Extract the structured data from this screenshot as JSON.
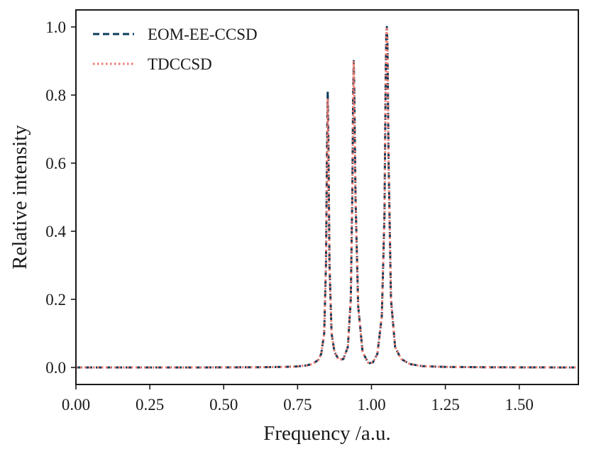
{
  "chart_data": {
    "type": "line",
    "xlabel": "Frequency /a.u.",
    "ylabel": "Relative intensity",
    "xlim": [
      0.0,
      1.7
    ],
    "ylim": [
      -0.05,
      1.05
    ],
    "xticks": [
      0.0,
      0.25,
      0.5,
      0.75,
      1.0,
      1.25,
      1.5
    ],
    "xtick_labels": [
      "0.00",
      "0.25",
      "0.50",
      "0.75",
      "1.00",
      "1.25",
      "1.50"
    ],
    "yticks": [
      0.0,
      0.2,
      0.4,
      0.6,
      0.8,
      1.0
    ],
    "ytick_labels": [
      "0.0",
      "0.2",
      "0.4",
      "0.6",
      "0.8",
      "1.0"
    ],
    "grid": false,
    "legend_position": "top-left",
    "peaks": [
      {
        "x": 0.852,
        "y": 0.81
      },
      {
        "x": 0.94,
        "y": 0.9
      },
      {
        "x": 1.052,
        "y": 1.0
      }
    ],
    "x": [
      0.0,
      0.2,
      0.4,
      0.6,
      0.7,
      0.75,
      0.78,
      0.8,
      0.82,
      0.83,
      0.84,
      0.846,
      0.85,
      0.852,
      0.854,
      0.858,
      0.865,
      0.875,
      0.89,
      0.905,
      0.92,
      0.93,
      0.935,
      0.938,
      0.94,
      0.942,
      0.946,
      0.955,
      0.97,
      0.99,
      1.005,
      1.02,
      1.035,
      1.044,
      1.048,
      1.05,
      1.052,
      1.054,
      1.058,
      1.066,
      1.08,
      1.1,
      1.13,
      1.17,
      1.25,
      1.4,
      1.55,
      1.7
    ],
    "series": [
      {
        "name": "EOM-EE-CCSD",
        "color": "#0b3d5c",
        "dash": "dashed",
        "values": [
          0.0,
          0.0,
          0.0,
          0.0005,
          0.0015,
          0.003,
          0.006,
          0.01,
          0.022,
          0.04,
          0.1,
          0.3,
          0.68,
          0.81,
          0.68,
          0.3,
          0.1,
          0.045,
          0.022,
          0.025,
          0.06,
          0.2,
          0.5,
          0.8,
          0.9,
          0.8,
          0.5,
          0.18,
          0.045,
          0.012,
          0.015,
          0.04,
          0.15,
          0.45,
          0.85,
          0.97,
          1.0,
          0.95,
          0.6,
          0.2,
          0.06,
          0.025,
          0.01,
          0.004,
          0.0015,
          0.0005,
          0.0002,
          0.0
        ]
      },
      {
        "name": "TDCCSD",
        "color": "#f07a70",
        "dash": "dotted",
        "values": [
          0.0,
          0.0,
          0.0,
          0.0005,
          0.0015,
          0.003,
          0.006,
          0.01,
          0.022,
          0.04,
          0.1,
          0.3,
          0.67,
          0.79,
          0.67,
          0.3,
          0.1,
          0.045,
          0.022,
          0.025,
          0.06,
          0.2,
          0.5,
          0.79,
          0.9,
          0.79,
          0.5,
          0.18,
          0.045,
          0.012,
          0.015,
          0.04,
          0.15,
          0.45,
          0.84,
          0.97,
          1.0,
          0.95,
          0.6,
          0.2,
          0.06,
          0.025,
          0.01,
          0.004,
          0.0015,
          0.0005,
          0.0002,
          0.0
        ]
      }
    ]
  }
}
